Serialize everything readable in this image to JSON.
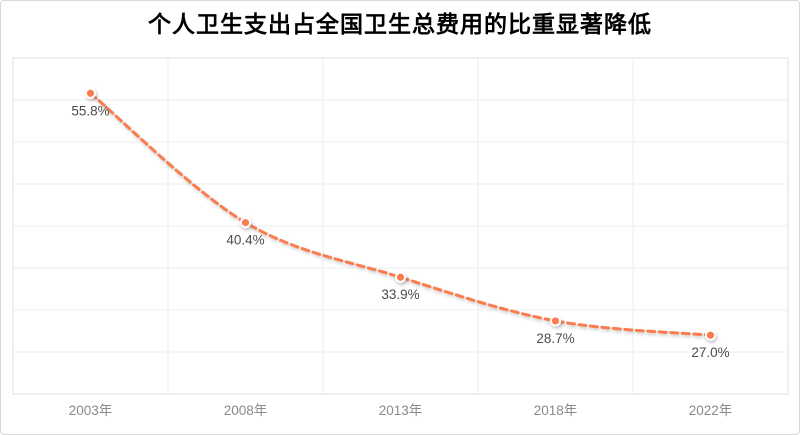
{
  "chart_data": {
    "type": "line",
    "title": "个人卫生支出占全国卫生总费用的比重显著降低",
    "categories": [
      "2003年",
      "2008年",
      "2013年",
      "2018年",
      "2022年"
    ],
    "values": [
      55.8,
      40.4,
      33.9,
      28.7,
      27.0
    ],
    "data_labels": [
      "55.8%",
      "40.4%",
      "33.9%",
      "28.7%",
      "27.0%"
    ],
    "xlabel": "",
    "ylabel": "",
    "ylim": [
      20,
      60
    ],
    "y_grid_step": 5,
    "grid": "on",
    "legend": "none",
    "y_axis_labels": "hidden",
    "line_style": "dashed",
    "smooth": true,
    "colors": {
      "line": "#fb7c4f",
      "marker_fill": "#fb7c4f",
      "marker_ring": "#ffffff",
      "gridline": "#ededed",
      "plot_border": "#e2e2e2",
      "frame_border": "#d9d9d9",
      "data_label": "#4c4c4c",
      "axis_label": "#8a8a8a",
      "title": "#000000"
    }
  }
}
